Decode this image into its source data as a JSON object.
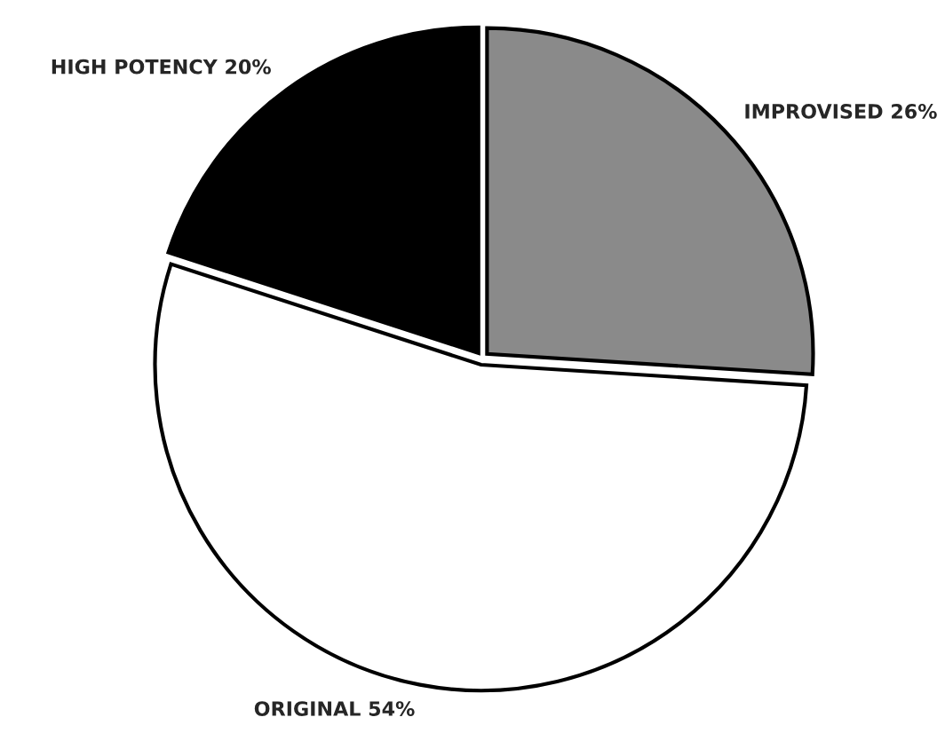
{
  "chart_data": {
    "type": "pie",
    "categories": [
      "IMPROVISED",
      "ORIGINAL",
      "HIGH POTENCY"
    ],
    "values": [
      26,
      54,
      20
    ],
    "value_labels": [
      "26%",
      "54%",
      "20%"
    ],
    "colors": [
      "#8a8a8a",
      "#ffffff",
      "#000000"
    ]
  }
}
